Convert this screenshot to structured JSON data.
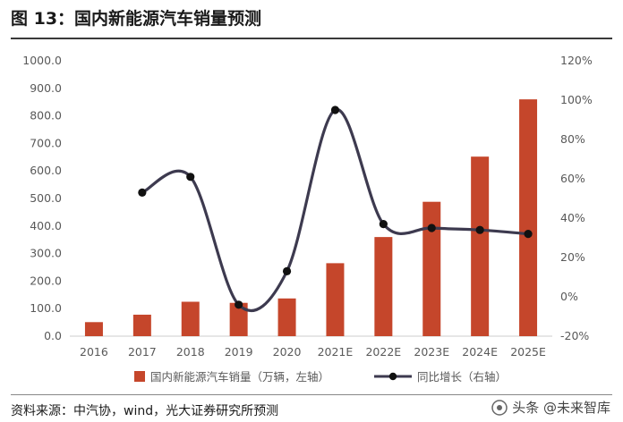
{
  "title": "图 13：国内新能源汽车销量预测",
  "source": "资料来源：中汽协，wind，光大证券研究所预测",
  "watermark": "头条 @未来智库",
  "colors": {
    "bar": "#c5462b",
    "line": "#3d3a4f",
    "marker": "#111111",
    "axis": "#cccccc",
    "text": "#595959"
  },
  "chart_data": {
    "type": "bar",
    "categories": [
      "2016",
      "2017",
      "2018",
      "2019",
      "2020",
      "2021E",
      "2022E",
      "2023E",
      "2024E",
      "2025E"
    ],
    "series": [
      {
        "name": "国内新能源汽车销量（万辆，左轴）",
        "type": "bar",
        "axis": "left",
        "values": [
          51,
          78,
          125,
          121,
          137,
          265,
          360,
          488,
          652,
          860
        ]
      },
      {
        "name": "同比增长（右轴）",
        "type": "line",
        "axis": "right",
        "unit": "%",
        "values": [
          null,
          53,
          61,
          -4,
          13,
          95,
          37,
          35,
          34,
          32
        ]
      }
    ],
    "y_left": {
      "min": 0,
      "max": 1000,
      "step": 100,
      "ticks": [
        "0.0",
        "100.0",
        "200.0",
        "300.0",
        "400.0",
        "500.0",
        "600.0",
        "700.0",
        "800.0",
        "900.0",
        "1000.0"
      ]
    },
    "y_right": {
      "min": -20,
      "max": 120,
      "step": 20,
      "ticks": [
        "-20%",
        "0%",
        "20%",
        "40%",
        "60%",
        "80%",
        "100%",
        "120%"
      ]
    },
    "legend": {
      "position": "bottom"
    },
    "grid": false
  }
}
